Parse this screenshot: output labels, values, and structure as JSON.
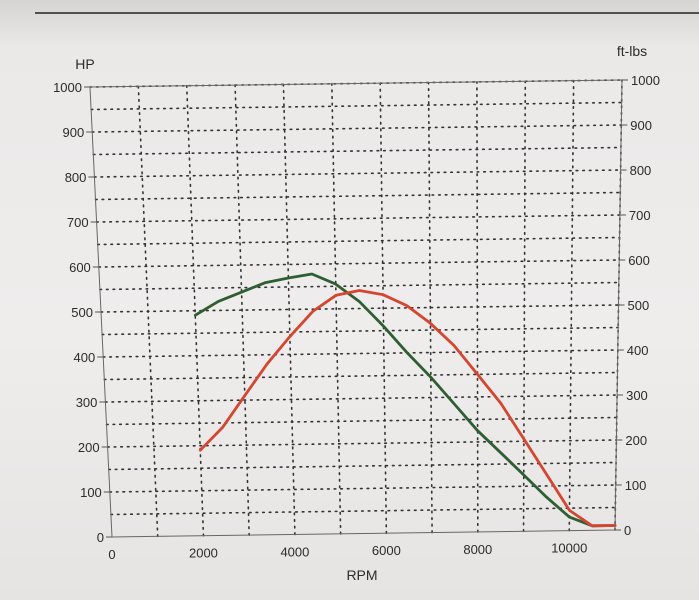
{
  "chart_data": {
    "type": "line",
    "xlabel": "RPM",
    "ylabel_left": "HP",
    "ylabel_right": "ft-lbs",
    "xlim": [
      0,
      11000
    ],
    "ylim": [
      0,
      1000
    ],
    "x_ticks": [
      0,
      2000,
      4000,
      6000,
      8000,
      10000
    ],
    "y_ticks": [
      0,
      100,
      200,
      300,
      400,
      500,
      600,
      700,
      800,
      900,
      1000
    ],
    "grid": "dotted",
    "series": [
      {
        "color": "#2e5e32",
        "points": [
          [
            2000,
            490
          ],
          [
            2500,
            520
          ],
          [
            3500,
            560
          ],
          [
            4000,
            570
          ],
          [
            4500,
            578
          ],
          [
            5000,
            555
          ],
          [
            5500,
            515
          ],
          [
            6000,
            460
          ],
          [
            6500,
            400
          ],
          [
            7000,
            345
          ],
          [
            7500,
            285
          ],
          [
            8000,
            225
          ],
          [
            8500,
            175
          ],
          [
            9000,
            125
          ],
          [
            9500,
            75
          ],
          [
            10000,
            30
          ],
          [
            10500,
            10
          ],
          [
            11000,
            10
          ]
        ]
      },
      {
        "color": "#d4462f",
        "points": [
          [
            2000,
            190
          ],
          [
            2500,
            240
          ],
          [
            3000,
            310
          ],
          [
            3500,
            380
          ],
          [
            4000,
            440
          ],
          [
            4500,
            495
          ],
          [
            5000,
            530
          ],
          [
            5500,
            540
          ],
          [
            6000,
            530
          ],
          [
            6500,
            505
          ],
          [
            7000,
            465
          ],
          [
            7500,
            415
          ],
          [
            8000,
            350
          ],
          [
            8500,
            285
          ],
          [
            9000,
            205
          ],
          [
            9500,
            125
          ],
          [
            10000,
            45
          ],
          [
            10500,
            10
          ],
          [
            11000,
            10
          ]
        ]
      }
    ]
  }
}
